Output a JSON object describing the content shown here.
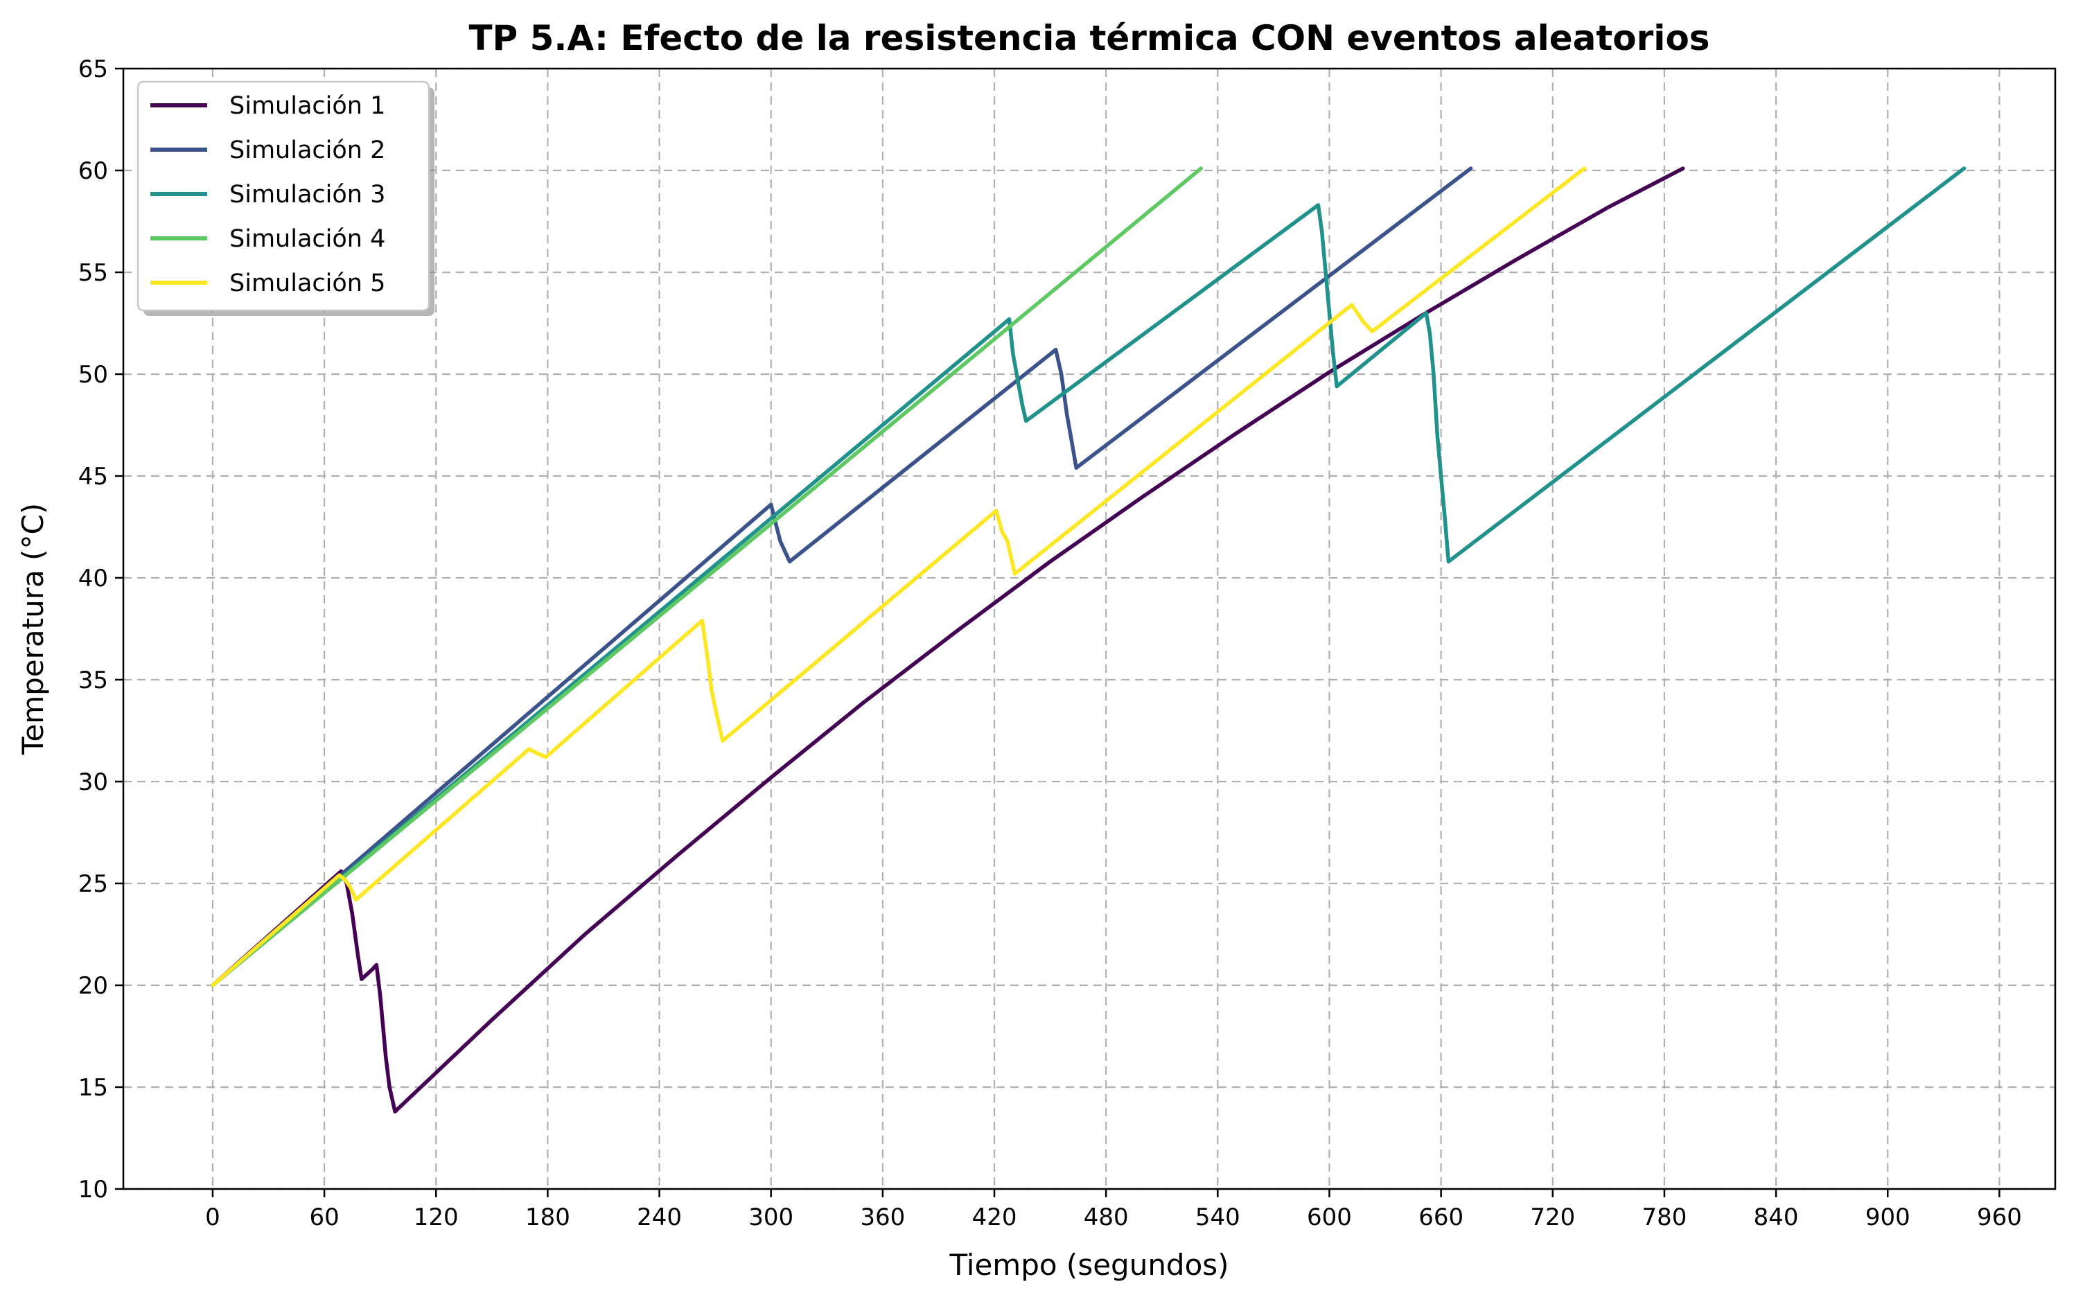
{
  "chart_data": {
    "type": "line",
    "title": "TP 5.A: Efecto de la resistencia térmica CON eventos aleatorios",
    "xlabel": "Tiempo (segundos)",
    "ylabel": "Temperatura (°C)",
    "xlim": [
      -48,
      990
    ],
    "ylim": [
      10,
      65
    ],
    "xticks": [
      0,
      60,
      120,
      180,
      240,
      300,
      360,
      420,
      480,
      540,
      600,
      660,
      720,
      780,
      840,
      900,
      960
    ],
    "yticks": [
      10,
      15,
      20,
      25,
      30,
      35,
      40,
      45,
      50,
      55,
      60,
      65
    ],
    "grid": true,
    "legend_position": "top-left",
    "series": [
      {
        "name": "Simulación 1",
        "color": "#440154",
        "points": [
          [
            0,
            20
          ],
          [
            69,
            25.6
          ],
          [
            72,
            25
          ],
          [
            75,
            23.5
          ],
          [
            78,
            21.5
          ],
          [
            80,
            20.3
          ],
          [
            86,
            20.8
          ],
          [
            88,
            21
          ],
          [
            90,
            19.5
          ],
          [
            93,
            16.5
          ],
          [
            95,
            15
          ],
          [
            98,
            13.8
          ],
          [
            150,
            18.3
          ],
          [
            200,
            22.5
          ],
          [
            250,
            26.4
          ],
          [
            300,
            30.2
          ],
          [
            350,
            33.9
          ],
          [
            400,
            37.4
          ],
          [
            450,
            40.8
          ],
          [
            500,
            44
          ],
          [
            550,
            47.1
          ],
          [
            600,
            50.1
          ],
          [
            650,
            52.9
          ],
          [
            700,
            55.6
          ],
          [
            750,
            58.2
          ],
          [
            790,
            60.1
          ]
        ]
      },
      {
        "name": "Simulación 2",
        "color": "#3b528b",
        "points": [
          [
            0,
            20
          ],
          [
            300,
            43.6
          ],
          [
            303,
            42.5
          ],
          [
            305,
            41.8
          ],
          [
            310,
            40.8
          ],
          [
            453,
            51.2
          ],
          [
            456,
            50
          ],
          [
            459,
            48
          ],
          [
            461,
            47
          ],
          [
            464,
            45.4
          ],
          [
            676,
            60.1
          ]
        ]
      },
      {
        "name": "Simulación 3",
        "color": "#21918c",
        "points": [
          [
            0,
            20
          ],
          [
            428,
            52.7
          ],
          [
            430,
            51
          ],
          [
            432,
            50
          ],
          [
            435,
            48.5
          ],
          [
            437,
            47.7
          ],
          [
            594,
            58.3
          ],
          [
            596,
            57
          ],
          [
            598,
            55
          ],
          [
            600,
            53
          ],
          [
            602,
            51
          ],
          [
            604,
            49.4
          ],
          [
            652,
            53
          ],
          [
            654,
            52
          ],
          [
            656,
            50
          ],
          [
            658,
            47
          ],
          [
            660,
            45
          ],
          [
            662,
            43
          ],
          [
            664,
            40.8
          ],
          [
            941,
            60.1
          ]
        ]
      },
      {
        "name": "Simulación 4",
        "color": "#5ec962",
        "points": [
          [
            0,
            20
          ],
          [
            531,
            60.1
          ]
        ]
      },
      {
        "name": "Simulación 5",
        "color": "#fde725",
        "points": [
          [
            0,
            20
          ],
          [
            68,
            25.4
          ],
          [
            71,
            25.2
          ],
          [
            74,
            24.8
          ],
          [
            77,
            24.2
          ],
          [
            170,
            31.6
          ],
          [
            174,
            31.4
          ],
          [
            179,
            31.2
          ],
          [
            263,
            37.9
          ],
          [
            266,
            36
          ],
          [
            268,
            34.5
          ],
          [
            271,
            33.2
          ],
          [
            274,
            32
          ],
          [
            421,
            43.3
          ],
          [
            424,
            42.3
          ],
          [
            427,
            41.8
          ],
          [
            429,
            41
          ],
          [
            431,
            40.2
          ],
          [
            612,
            53.4
          ],
          [
            618,
            52.6
          ],
          [
            623,
            52.1
          ],
          [
            737,
            60.1
          ]
        ]
      }
    ]
  }
}
